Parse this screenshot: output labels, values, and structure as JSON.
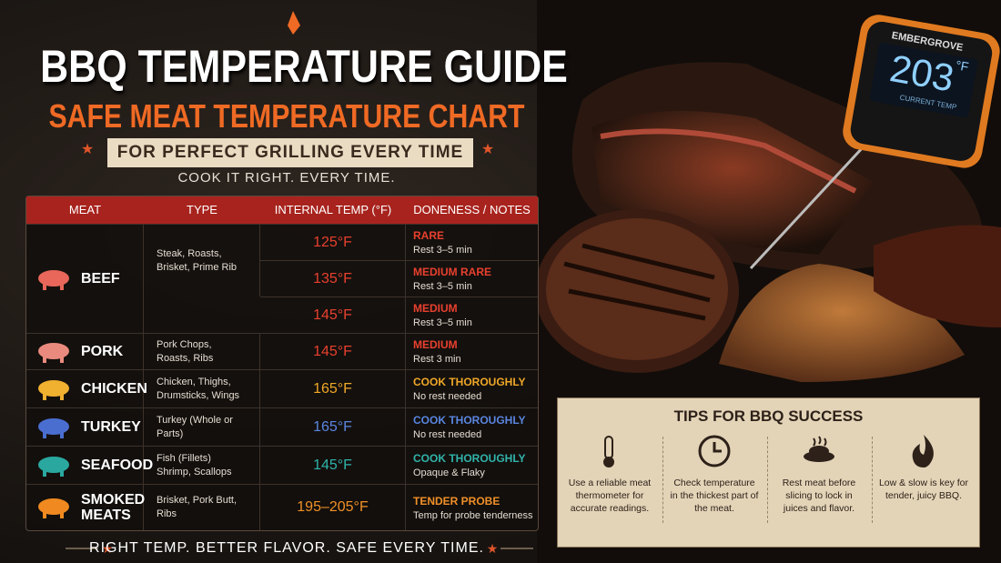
{
  "header": {
    "title": "BBQ TEMPERATURE GUIDE",
    "subtitle": "SAFE MEAT TEMPERATURE CHART",
    "banner": "FOR PERFECT GRILLING EVERY TIME",
    "tagline": "COOK IT RIGHT. EVERY TIME."
  },
  "table": {
    "columns": [
      "MEAT",
      "TYPE",
      "INTERNAL TEMP (°F)",
      "DONENESS / NOTES"
    ],
    "rows": [
      {
        "meat": "BEEF",
        "type": "Steak, Roasts, Brisket, Prime Rib",
        "icon_color": "#e8675a",
        "entries": [
          {
            "temp": "125°F",
            "doneness": "RARE",
            "note": "Rest 3–5 min",
            "color": "#e8402e"
          },
          {
            "temp": "135°F",
            "doneness": "MEDIUM RARE",
            "note": "Rest 3–5 min",
            "color": "#e8402e"
          },
          {
            "temp": "145°F",
            "doneness": "MEDIUM",
            "note": "Rest 3–5 min",
            "color": "#e8402e"
          }
        ]
      },
      {
        "meat": "PORK",
        "type": "Pork Chops, Roasts, Ribs",
        "icon_color": "#ea8a7e",
        "entries": [
          {
            "temp": "145°F",
            "doneness": "MEDIUM",
            "note": "Rest 3 min",
            "color": "#e8402e"
          }
        ]
      },
      {
        "meat": "CHICKEN",
        "type": "Chicken, Thighs, Drumsticks, Wings",
        "icon_color": "#f0b030",
        "entries": [
          {
            "temp": "165°F",
            "doneness": "COOK THOROUGHLY",
            "note": "No rest needed",
            "color": "#f0a828"
          }
        ]
      },
      {
        "meat": "TURKEY",
        "type": "Turkey (Whole or Parts)",
        "icon_color": "#4a6ed0",
        "entries": [
          {
            "temp": "165°F",
            "doneness": "COOK THOROUGHLY",
            "note": "No rest needed",
            "color": "#5a86e0"
          }
        ]
      },
      {
        "meat": "SEAFOOD",
        "type": "Fish (Fillets) Shrimp, Scallops",
        "icon_color": "#2aa8a0",
        "entries": [
          {
            "temp": "145°F",
            "doneness": "COOK THOROUGHLY",
            "note": "Opaque & Flaky",
            "color": "#30b4aa"
          }
        ]
      },
      {
        "meat": "SMOKED MEATS",
        "type": "Brisket, Pork Butt, Ribs",
        "icon_color": "#f08a20",
        "entries": [
          {
            "temp": "195–205°F",
            "doneness": "TENDER PROBE",
            "note": "Temp for probe tenderness",
            "color": "#f09028"
          }
        ]
      }
    ]
  },
  "thermometer": {
    "brand": "EMBERGROVE",
    "reading": "203",
    "unit": "°F",
    "label": "CURRENT TEMP"
  },
  "tips": {
    "title": "TIPS FOR BBQ SUCCESS",
    "items": [
      "Use a reliable meat thermometer for accurate readings.",
      "Check temperature in the thickest part of the meat.",
      "Rest meat before slicing to lock in juices and flavor.",
      "Low & slow is key for tender, juicy BBQ."
    ]
  },
  "footer": "RIGHT TEMP. BETTER FLAVOR. SAFE EVERY TIME."
}
